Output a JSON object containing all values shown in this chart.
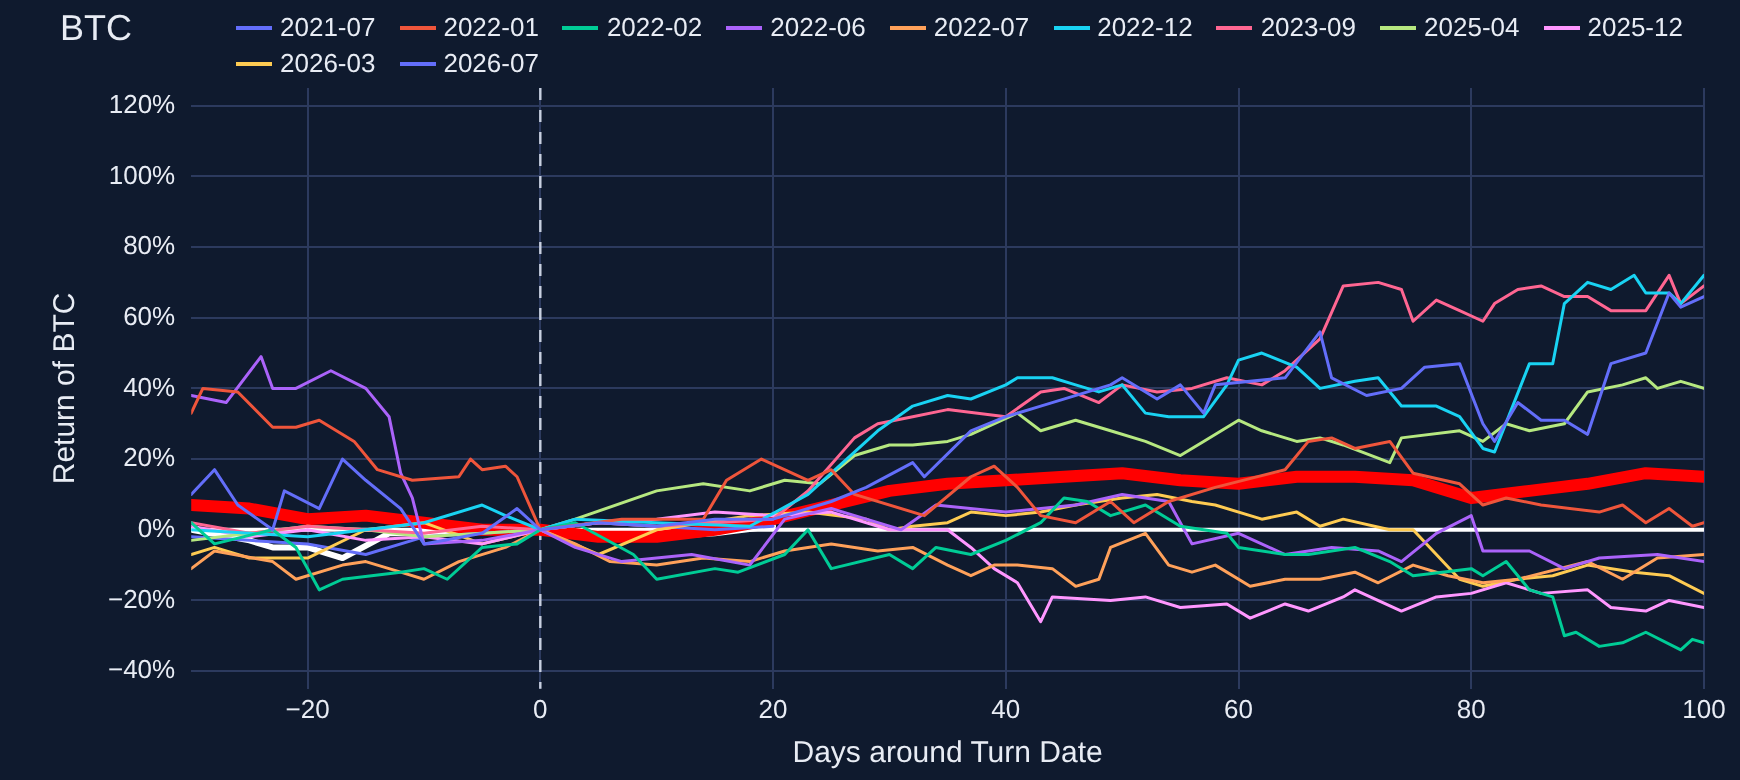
{
  "chart_data": {
    "type": "line",
    "title": "BTC",
    "xlabel": "Days around Turn Date",
    "ylabel": "Return of BTC",
    "xlim": [
      -30,
      100
    ],
    "xticks": [
      {
        "value": -20,
        "label": "−20"
      },
      0,
      20,
      40,
      60,
      80,
      100
    ],
    "ylim": [
      -45,
      125
    ],
    "yticks": [
      {
        "value": -40,
        "label": "−40%"
      },
      {
        "value": -20,
        "label": "−20%"
      },
      {
        "value": 0,
        "label": "0%"
      },
      {
        "value": 20,
        "label": "20%"
      },
      {
        "value": 40,
        "label": "40%"
      },
      {
        "value": 60,
        "label": "60%"
      },
      {
        "value": 80,
        "label": "80%"
      },
      {
        "value": 100,
        "label": "100%"
      },
      {
        "value": 120,
        "label": "120%"
      }
    ],
    "grid": true,
    "legend": "top",
    "marker": "none",
    "line_style": "solid",
    "ref_lines": [
      {
        "axis": "y",
        "value": 0,
        "color": "#ffffff",
        "line_style": "solid"
      },
      {
        "axis": "x",
        "value": 0,
        "color": "#c8d0e0",
        "line_style": "dashed"
      }
    ],
    "series": [
      {
        "name": "2021-07",
        "color": "#636efa",
        "x": [
          -30,
          -28,
          -26,
          -23,
          -22,
          -19,
          -17,
          -15,
          -12,
          -10,
          -5,
          -2,
          0,
          5,
          10,
          15,
          20,
          25,
          28,
          32,
          33,
          37,
          40,
          43,
          49,
          50,
          53,
          55,
          57,
          58,
          64,
          67,
          68,
          71,
          74,
          76,
          79,
          81,
          82,
          84,
          86,
          88,
          90,
          92,
          95,
          97,
          98,
          100
        ],
        "values": [
          10,
          17,
          7,
          0,
          11,
          6,
          20,
          14,
          6,
          -4,
          -1,
          6,
          0,
          2,
          1,
          3,
          3,
          8,
          12,
          19,
          15,
          28,
          32,
          35,
          41,
          43,
          37,
          41,
          33,
          41,
          43,
          56,
          43,
          38,
          40,
          46,
          47,
          30,
          25,
          36,
          31,
          31,
          27,
          47,
          50,
          67,
          63,
          66
        ]
      },
      {
        "name": "2022-01",
        "color": "#ef553b",
        "x": [
          -30,
          -29,
          -26,
          -23,
          -21,
          -19,
          -16,
          -14,
          -11,
          -7,
          -6,
          -5,
          -3,
          -2,
          0,
          7,
          14,
          16,
          19,
          23,
          25,
          27,
          33,
          37,
          39,
          41,
          43,
          46,
          49,
          51,
          54,
          58,
          64,
          66,
          68,
          70,
          73,
          75,
          79,
          81,
          83,
          86,
          91,
          93,
          95,
          97,
          99,
          100
        ],
        "values": [
          33,
          40,
          39,
          29,
          29,
          31,
          25,
          17,
          14,
          15,
          20,
          17,
          18,
          15,
          0,
          3,
          3,
          14,
          20,
          14,
          17,
          10,
          4,
          15,
          18,
          12,
          4,
          2,
          8,
          2,
          8,
          12,
          17,
          25,
          26,
          23,
          25,
          16,
          13,
          7,
          9,
          7,
          5,
          7,
          2,
          6,
          1,
          2
        ]
      },
      {
        "name": "2022-02",
        "color": "#00cc96",
        "x": [
          -30,
          -28,
          -23,
          -21,
          -19,
          -17,
          -12,
          -10,
          -8,
          -5,
          -2,
          0,
          3,
          8,
          10,
          15,
          17,
          21,
          23,
          25,
          30,
          32,
          34,
          37,
          40,
          43,
          45,
          47,
          49,
          52,
          55,
          59,
          60,
          64,
          66,
          70,
          73,
          75,
          80,
          81,
          83,
          85,
          87,
          88,
          89,
          91,
          93,
          95,
          98,
          99,
          100
        ],
        "values": [
          2,
          -4,
          0,
          -5,
          -17,
          -14,
          -12,
          -11,
          -14,
          -5,
          -4,
          0,
          2,
          -7,
          -14,
          -11,
          -12,
          -7,
          0,
          -11,
          -7,
          -11,
          -5,
          -7,
          -3,
          2,
          9,
          8,
          4,
          7,
          1,
          -1,
          -5,
          -7,
          -7,
          -5,
          -9,
          -13,
          -11,
          -13,
          -9,
          -17,
          -19,
          -30,
          -29,
          -33,
          -32,
          -29,
          -34,
          -31,
          -32
        ]
      },
      {
        "name": "2022-06",
        "color": "#ab63fa",
        "x": [
          -30,
          -27,
          -24,
          -23,
          -21,
          -18,
          -15,
          -13,
          -12,
          -11,
          -10,
          -5,
          0,
          3,
          7,
          13,
          18,
          21,
          25,
          31,
          34,
          40,
          46,
          50,
          54,
          56,
          60,
          64,
          68,
          72,
          74,
          77,
          80,
          81,
          85,
          88,
          91,
          96,
          100
        ],
        "values": [
          38,
          36,
          49,
          40,
          40,
          45,
          40,
          32,
          16,
          9,
          -4,
          -3,
          0,
          -5,
          -9,
          -7,
          -10,
          3,
          6,
          0,
          7,
          5,
          7,
          10,
          8,
          -4,
          -1,
          -7,
          -5,
          -6,
          -9,
          -1,
          4,
          -6,
          -6,
          -11,
          -8,
          -7,
          -9
        ]
      },
      {
        "name": "2022-07",
        "color": "#ffa15a",
        "x": [
          -30,
          -28,
          -23,
          -21,
          -17,
          -15,
          -12,
          -10,
          -7,
          -3,
          0,
          3,
          6,
          10,
          14,
          18,
          21,
          25,
          29,
          32,
          35,
          37,
          39,
          41,
          44,
          46,
          48,
          49,
          52,
          54,
          56,
          58,
          61,
          64,
          67,
          70,
          72,
          75,
          78,
          81,
          84,
          90,
          93,
          96,
          100
        ],
        "values": [
          -11,
          -6,
          -9,
          -14,
          -10,
          -9,
          -12,
          -14,
          -9,
          -5,
          0,
          -4,
          -9,
          -10,
          -8,
          -9,
          -6,
          -4,
          -6,
          -5,
          -10,
          -13,
          -10,
          -10,
          -11,
          -16,
          -14,
          -5,
          -1,
          -10,
          -12,
          -10,
          -16,
          -14,
          -14,
          -12,
          -15,
          -10,
          -13,
          -15,
          -14,
          -9,
          -14,
          -8,
          -7
        ]
      },
      {
        "name": "2022-12",
        "color": "#19d3f3",
        "x": [
          -30,
          -25,
          -20,
          -15,
          -10,
          -5,
          -3,
          0,
          3,
          10,
          18,
          23,
          26,
          29,
          32,
          35,
          37,
          40,
          41,
          44,
          46,
          48,
          50,
          52,
          54,
          57,
          59,
          60,
          62,
          65,
          67,
          70,
          72,
          74,
          77,
          79,
          81,
          82,
          85,
          87,
          88,
          90,
          92,
          94,
          95,
          97,
          98,
          100
        ],
        "values": [
          0,
          -1,
          -2,
          0,
          2,
          7,
          4,
          0,
          3,
          2,
          1,
          10,
          19,
          28,
          35,
          38,
          37,
          41,
          43,
          43,
          41,
          39,
          41,
          33,
          32,
          32,
          41,
          48,
          50,
          46,
          40,
          42,
          43,
          35,
          35,
          32,
          23,
          22,
          47,
          47,
          64,
          70,
          68,
          72,
          67,
          67,
          64,
          72
        ]
      },
      {
        "name": "2023-09",
        "color": "#ff6692",
        "x": [
          -30,
          -25,
          -20,
          -15,
          -10,
          -5,
          0,
          5,
          10,
          15,
          20,
          23,
          27,
          29,
          32,
          35,
          40,
          43,
          45,
          48,
          50,
          53,
          56,
          59,
          62,
          64,
          67,
          69,
          72,
          74,
          75,
          77,
          79,
          81,
          82,
          84,
          86,
          88,
          90,
          92,
          95,
          97,
          98,
          100
        ],
        "values": [
          2,
          -1,
          1,
          0,
          -1,
          1,
          0,
          2,
          1,
          2,
          3,
          11,
          26,
          30,
          32,
          34,
          32,
          39,
          40,
          36,
          41,
          39,
          40,
          43,
          41,
          45,
          54,
          69,
          70,
          68,
          59,
          65,
          62,
          59,
          64,
          68,
          69,
          66,
          66,
          62,
          62,
          72,
          64,
          69
        ]
      },
      {
        "name": "2025-04",
        "color": "#b6e880",
        "x": [
          -30,
          -25,
          -20,
          -15,
          -10,
          -5,
          0,
          3,
          10,
          14,
          18,
          21,
          24,
          27,
          30,
          32,
          35,
          37,
          41,
          43,
          46,
          49,
          52,
          55,
          57,
          60,
          62,
          65,
          67,
          69,
          73,
          74,
          79,
          81,
          83,
          85,
          88,
          90,
          93,
          95,
          96,
          98,
          100
        ],
        "values": [
          -3,
          -1,
          1,
          0,
          -2,
          -1,
          0,
          3,
          11,
          13,
          11,
          14,
          13,
          21,
          24,
          24,
          25,
          27,
          33,
          28,
          31,
          28,
          25,
          21,
          25,
          31,
          28,
          25,
          26,
          24,
          19,
          26,
          28,
          25,
          30,
          28,
          30,
          39,
          41,
          43,
          40,
          42,
          40
        ]
      },
      {
        "name": "2025-12",
        "color": "#ff97ff",
        "x": [
          -30,
          -25,
          -20,
          -15,
          -10,
          -5,
          0,
          5,
          10,
          15,
          20,
          25,
          30,
          35,
          37,
          39,
          41,
          43,
          44,
          49,
          52,
          55,
          59,
          61,
          64,
          66,
          69,
          70,
          74,
          77,
          80,
          83,
          86,
          90,
          92,
          95,
          97,
          100
        ],
        "values": [
          1,
          -2,
          0,
          -3,
          -2,
          -4,
          0,
          2,
          3,
          5,
          4,
          5,
          0,
          0,
          -5,
          -11,
          -15,
          -26,
          -19,
          -20,
          -19,
          -22,
          -21,
          -25,
          -21,
          -23,
          -19,
          -17,
          -23,
          -19,
          -18,
          -15,
          -18,
          -17,
          -22,
          -23,
          -20,
          -22
        ]
      },
      {
        "name": "2026-03",
        "color": "#fecb52",
        "x": [
          -30,
          -28,
          -25,
          -20,
          -15,
          -10,
          -5,
          0,
          5,
          10,
          18,
          23,
          28,
          30,
          32,
          35,
          37,
          40,
          43,
          46,
          50,
          53,
          56,
          58,
          62,
          65,
          67,
          69,
          73,
          75,
          77,
          79,
          81,
          84,
          87,
          90,
          94,
          97,
          100
        ],
        "values": [
          -7,
          -5,
          -8,
          -8,
          0,
          2,
          -4,
          0,
          -7,
          0,
          4,
          5,
          3,
          0,
          1,
          2,
          5,
          4,
          5,
          7,
          9,
          10,
          8,
          7,
          3,
          5,
          1,
          3,
          0,
          0,
          -7,
          -14,
          -16,
          -14,
          -13,
          -10,
          -12,
          -13,
          -18
        ]
      },
      {
        "name": "2026-07",
        "color": "#636efa",
        "x": [
          -30,
          -25,
          -20,
          -15,
          -10,
          -5,
          0,
          5,
          10,
          15,
          20
        ],
        "values": [
          -2,
          -3,
          -4,
          -7,
          -2,
          -1,
          0,
          2,
          1,
          0,
          1
        ]
      },
      {
        "color": "#ff0000",
        "x": [
          -30,
          -25,
          -20,
          -15,
          -10,
          -5,
          0,
          5,
          10,
          15,
          20,
          25,
          30,
          35,
          40,
          45,
          50,
          55,
          60,
          65,
          70,
          75,
          80,
          85,
          90,
          95,
          100
        ],
        "values": [
          7,
          6,
          3,
          4,
          2,
          0,
          0,
          -2,
          -2,
          0,
          3,
          7,
          11,
          13,
          14,
          15,
          16,
          14,
          13,
          15,
          15,
          14,
          9,
          11,
          13,
          16,
          15
        ]
      },
      {
        "color": "#ffffff",
        "x": [
          -30,
          -25,
          -23,
          -20,
          -17,
          -13,
          -10,
          -5,
          0,
          5,
          10,
          15,
          20
        ],
        "values": [
          0,
          -3,
          -5,
          -5,
          -8,
          -1,
          -1,
          0,
          0,
          -1,
          -2,
          -1,
          1
        ]
      }
    ]
  }
}
